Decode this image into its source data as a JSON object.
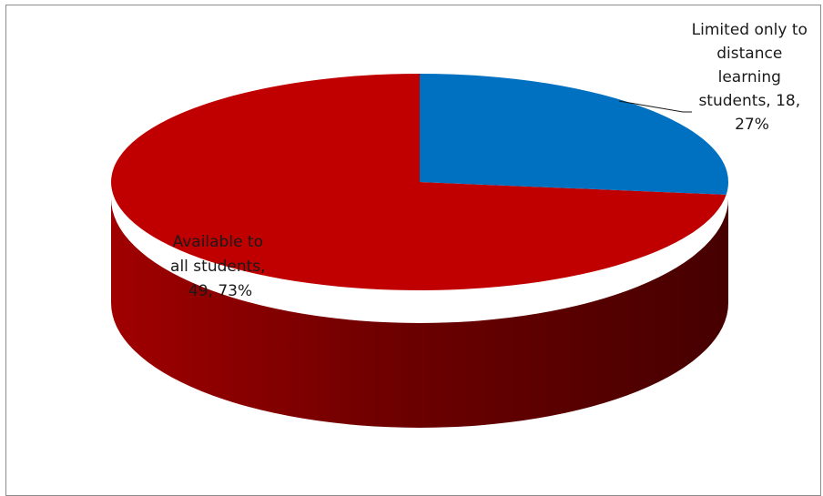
{
  "chart_data": {
    "type": "pie",
    "style": "3d",
    "slices": [
      {
        "label": "Limited only to distance learning students",
        "value": 18,
        "percent": "27%",
        "color": "#0070c0",
        "label_lines": [
          "Limited only to",
          "distance",
          "learning",
          "students, 18,",
          "27%"
        ]
      },
      {
        "label": "Available to all students",
        "value": 49,
        "percent": "73%",
        "color": "#c00000",
        "label_lines": [
          "Available to",
          "all students,",
          "49, 73%"
        ]
      }
    ],
    "legend": "none"
  }
}
